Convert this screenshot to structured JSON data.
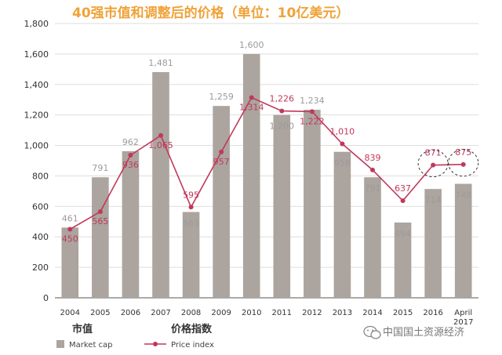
{
  "chart_data": {
    "type": "bar",
    "title": "40强市值和调整后的价格（单位：10亿美元）",
    "categories": [
      "2004",
      "2005",
      "2006",
      "2007",
      "2008",
      "2009",
      "2010",
      "2011",
      "2012",
      "2013",
      "2014",
      "2015",
      "2016",
      "April"
    ],
    "category_extra": "2017",
    "ylim": [
      0,
      1800
    ],
    "yticks": [
      0,
      200,
      400,
      600,
      800,
      1000,
      1200,
      1400,
      1600,
      1800
    ],
    "ytick_labels": [
      "0",
      "200",
      "400",
      "600",
      "800",
      "1,000",
      "1,200",
      "1,400",
      "1,600",
      "1,800"
    ],
    "grid": true,
    "series": [
      {
        "name": "Market cap",
        "type": "bar",
        "color": "#aca49e",
        "values": [
          461,
          791,
          962,
          1481,
          563,
          1259,
          1600,
          1200,
          1234,
          958,
          791,
          494,
          714,
          748
        ],
        "labels": [
          "461",
          "791",
          "962",
          "1,481",
          "563",
          "1,259",
          "1,600",
          "1,200",
          "1,234",
          "958",
          "791",
          "494",
          "714",
          "748"
        ]
      },
      {
        "name": "Price index",
        "type": "line",
        "color": "#c0395a",
        "values": [
          450,
          565,
          936,
          1065,
          595,
          957,
          1314,
          1226,
          1222,
          1010,
          839,
          637,
          871,
          875
        ],
        "labels": [
          "450",
          "565",
          "936",
          "1,065",
          "595",
          "957",
          "1,314",
          "1,226",
          "1,222",
          "1,010",
          "839",
          "637",
          "871",
          "875"
        ]
      }
    ],
    "legend": {
      "placement": "bottom-left",
      "items": [
        {
          "title": "市值",
          "subtitle": "Market cap",
          "series": 0
        },
        {
          "title": "价格指数",
          "subtitle": "Price index",
          "series": 1
        }
      ]
    },
    "annotation": "dashed circles around 2016 and April 2017 price points"
  },
  "watermark": "中国国土资源经济"
}
